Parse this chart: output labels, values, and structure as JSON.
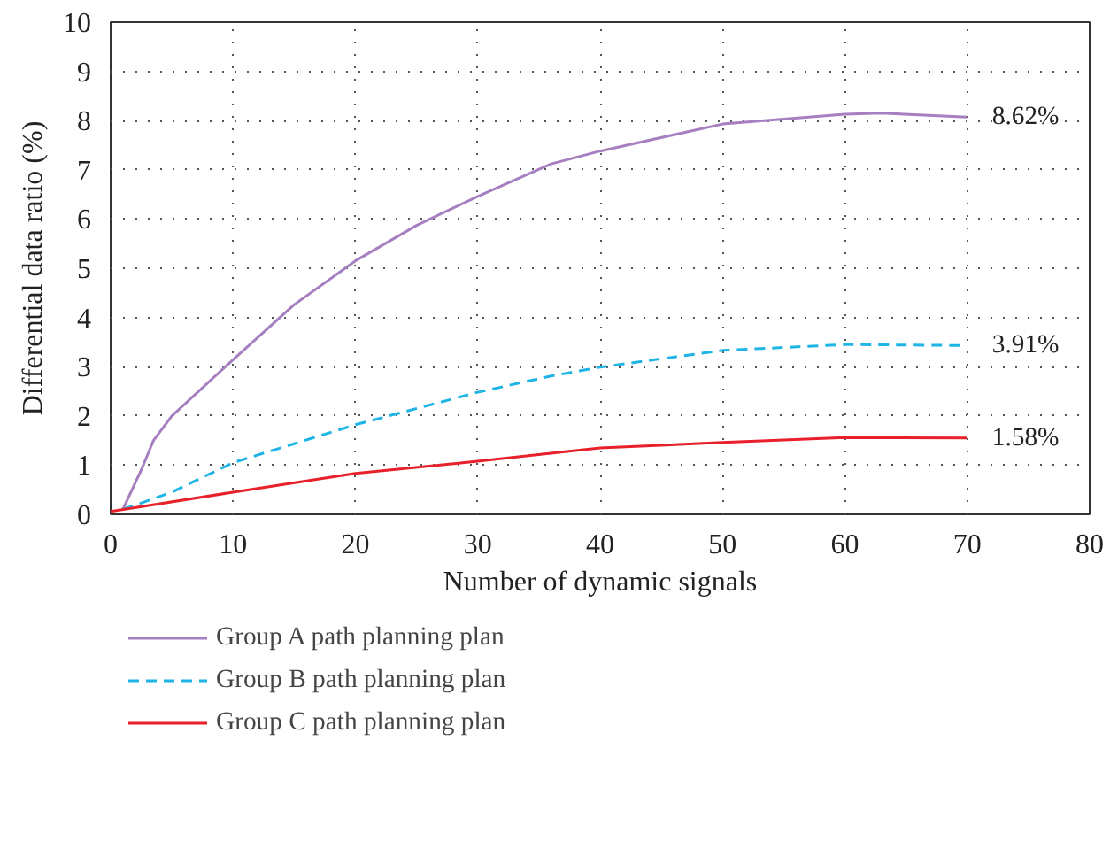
{
  "chart_data": {
    "type": "line",
    "xlabel": "Number of dynamic signals",
    "ylabel": "Differential data ratio (%)",
    "xlim": [
      0,
      80
    ],
    "ylim": [
      0,
      10
    ],
    "xticks": [
      0,
      10,
      20,
      30,
      40,
      50,
      60,
      70,
      80
    ],
    "yticks": [
      0,
      1,
      2,
      3,
      4,
      5,
      6,
      7,
      8,
      9,
      10
    ],
    "grid": true,
    "legend": "bottom",
    "marker": "none",
    "series": [
      {
        "name": "Group A path planning plan",
        "color": "#a57fc0",
        "line_style": "solid",
        "x": [
          1,
          2.5,
          3.5,
          5,
          10,
          15,
          20,
          25,
          30,
          36,
          40,
          50,
          60,
          63,
          70
        ],
        "values": [
          0.1,
          0.9,
          1.5,
          2.0,
          3.14,
          4.26,
          5.15,
          5.87,
          6.46,
          7.12,
          7.38,
          7.93,
          8.13,
          8.15,
          8.07
        ]
      },
      {
        "name": "Group B path planning plan",
        "color": "#1fb4e6",
        "line_style": "dashed",
        "x": [
          1,
          5,
          10,
          20,
          30,
          36,
          40,
          50,
          60,
          70
        ],
        "values": [
          0.1,
          0.45,
          1.05,
          1.82,
          2.48,
          2.81,
          2.99,
          3.33,
          3.45,
          3.43
        ]
      },
      {
        "name": "Group C path planning plan",
        "color": "#e8202a",
        "line_style": "solid",
        "x": [
          0,
          10,
          20,
          30,
          40,
          50,
          60,
          70
        ],
        "values": [
          0.06,
          0.45,
          0.83,
          1.08,
          1.35,
          1.46,
          1.56,
          1.55
        ]
      }
    ],
    "annotations": [
      "8.62%",
      "3.91%",
      "1.58%"
    ]
  }
}
